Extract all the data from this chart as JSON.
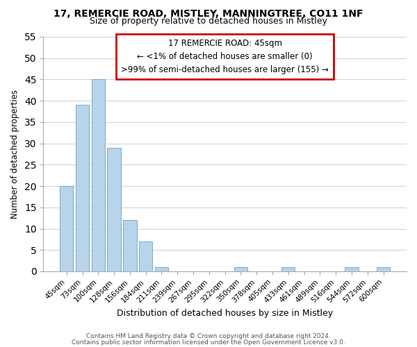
{
  "title_line1": "17, REMERCIE ROAD, MISTLEY, MANNINGTREE, CO11 1NF",
  "title_line2": "Size of property relative to detached houses in Mistley",
  "xlabel": "Distribution of detached houses by size in Mistley",
  "ylabel": "Number of detached properties",
  "footer_line1": "Contains HM Land Registry data © Crown copyright and database right 2024.",
  "footer_line2": "Contains public sector information licensed under the Open Government Licence v3.0.",
  "annotation_line1": "17 REMERCIE ROAD: 45sqm",
  "annotation_line2": "← <1% of detached houses are smaller (0)",
  "annotation_line3": ">99% of semi-detached houses are larger (155) →",
  "bar_labels": [
    "45sqm",
    "73sqm",
    "100sqm",
    "128sqm",
    "156sqm",
    "184sqm",
    "211sqm",
    "239sqm",
    "267sqm",
    "295sqm",
    "322sqm",
    "350sqm",
    "378sqm",
    "405sqm",
    "433sqm",
    "461sqm",
    "489sqm",
    "516sqm",
    "544sqm",
    "572sqm",
    "600sqm"
  ],
  "bar_values": [
    20,
    39,
    45,
    29,
    12,
    7,
    1,
    0,
    0,
    0,
    0,
    1,
    0,
    0,
    1,
    0,
    0,
    0,
    1,
    0,
    1
  ],
  "bar_color_normal": "#b8d4ea",
  "bar_edge_color": "#7aaac8",
  "ylim": [
    0,
    55
  ],
  "yticks": [
    0,
    5,
    10,
    15,
    20,
    25,
    30,
    35,
    40,
    45,
    50,
    55
  ],
  "annotation_box_facecolor": "#ffffff",
  "annotation_box_edgecolor": "#cc0000",
  "background_color": "#ffffff",
  "grid_color": "#c8d8e8",
  "title_fontsize": 10,
  "subtitle_fontsize": 9,
  "ylabel_fontsize": 8.5,
  "xlabel_fontsize": 9,
  "tick_fontsize": 7.5,
  "footer_fontsize": 6.5,
  "footer_color": "#555555"
}
